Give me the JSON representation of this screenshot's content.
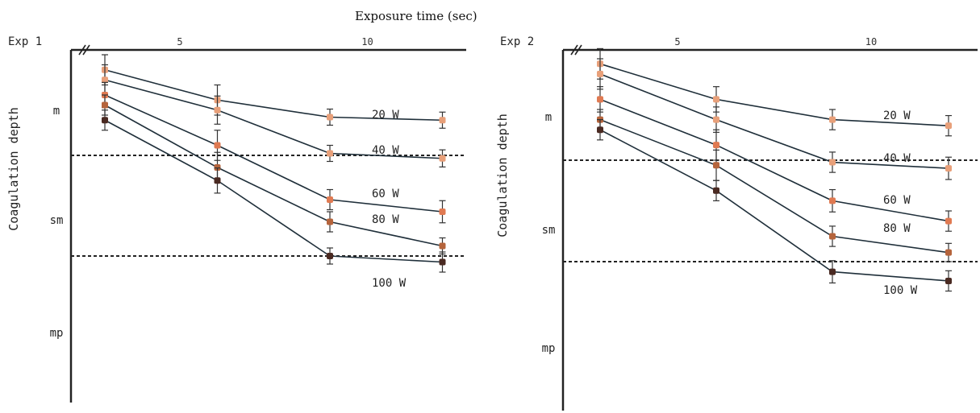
{
  "figure_title": "Exposure time (sec)",
  "chart_data": [
    {
      "type": "line",
      "panel_label": "Exp 1",
      "ylabel": "Coagulation depth",
      "x_ticks": [
        5,
        10
      ],
      "y_categories": [
        "m",
        "sm",
        "mp"
      ],
      "y_scale": "layer index (0 = top of mucosa, 1 = m/sm boundary, 2 = sm/mp boundary)",
      "boundaries": [
        1.0,
        2.0
      ],
      "x": [
        3,
        6,
        9,
        12
      ],
      "series": [
        {
          "name": "20 W",
          "color": "#e8a07a",
          "values": [
            0.15,
            0.45,
            0.62,
            0.65
          ],
          "errors": [
            0.3,
            0.3,
            0.16,
            0.16
          ]
        },
        {
          "name": "40 W",
          "color": "#e8a07a",
          "values": [
            0.25,
            0.55,
            0.98,
            1.03
          ],
          "errors": [
            0.3,
            0.28,
            0.16,
            0.17
          ]
        },
        {
          "name": "60 W",
          "color": "#e07a52",
          "values": [
            0.4,
            0.9,
            1.44,
            1.56
          ],
          "errors": [
            0.25,
            0.3,
            0.2,
            0.22
          ]
        },
        {
          "name": "80 W",
          "color": "#b5643c",
          "values": [
            0.5,
            1.12,
            1.66,
            1.9
          ],
          "errors": [
            0.2,
            0.3,
            0.2,
            0.16
          ]
        },
        {
          "name": "100 W",
          "color": "#4a2a22",
          "values": [
            0.65,
            1.25,
            2.0,
            2.06
          ],
          "errors": [
            0.2,
            0.25,
            0.16,
            0.2
          ]
        }
      ]
    },
    {
      "type": "line",
      "panel_label": "Exp 2",
      "ylabel": "Coagulation depth",
      "x_ticks": [
        5,
        10
      ],
      "y_categories": [
        "m",
        "sm",
        "mp"
      ],
      "y_scale": "layer index (0 = top of mucosa, 1 = m/sm boundary, 2 = sm/mp boundary)",
      "boundaries": [
        1.0,
        2.0
      ],
      "x": [
        3,
        6,
        9,
        12
      ],
      "series": [
        {
          "name": "20 W",
          "color": "#e8a07a",
          "values": [
            0.05,
            0.4,
            0.6,
            0.66
          ],
          "errors": [
            0.3,
            0.25,
            0.2,
            0.2
          ]
        },
        {
          "name": "40 W",
          "color": "#e8a07a",
          "values": [
            0.15,
            0.6,
            1.02,
            1.08
          ],
          "errors": [
            0.3,
            0.25,
            0.2,
            0.22
          ]
        },
        {
          "name": "60 W",
          "color": "#e07a52",
          "values": [
            0.4,
            0.85,
            1.4,
            1.6
          ],
          "errors": [
            0.25,
            0.3,
            0.22,
            0.2
          ]
        },
        {
          "name": "80 W",
          "color": "#b5643c",
          "values": [
            0.6,
            1.05,
            1.75,
            1.91
          ],
          "errors": [
            0.2,
            0.3,
            0.2,
            0.18
          ]
        },
        {
          "name": "100 W",
          "color": "#4a2a22",
          "values": [
            0.7,
            1.3,
            2.1,
            2.19
          ],
          "errors": [
            0.2,
            0.2,
            0.22,
            0.2
          ]
        }
      ]
    }
  ]
}
